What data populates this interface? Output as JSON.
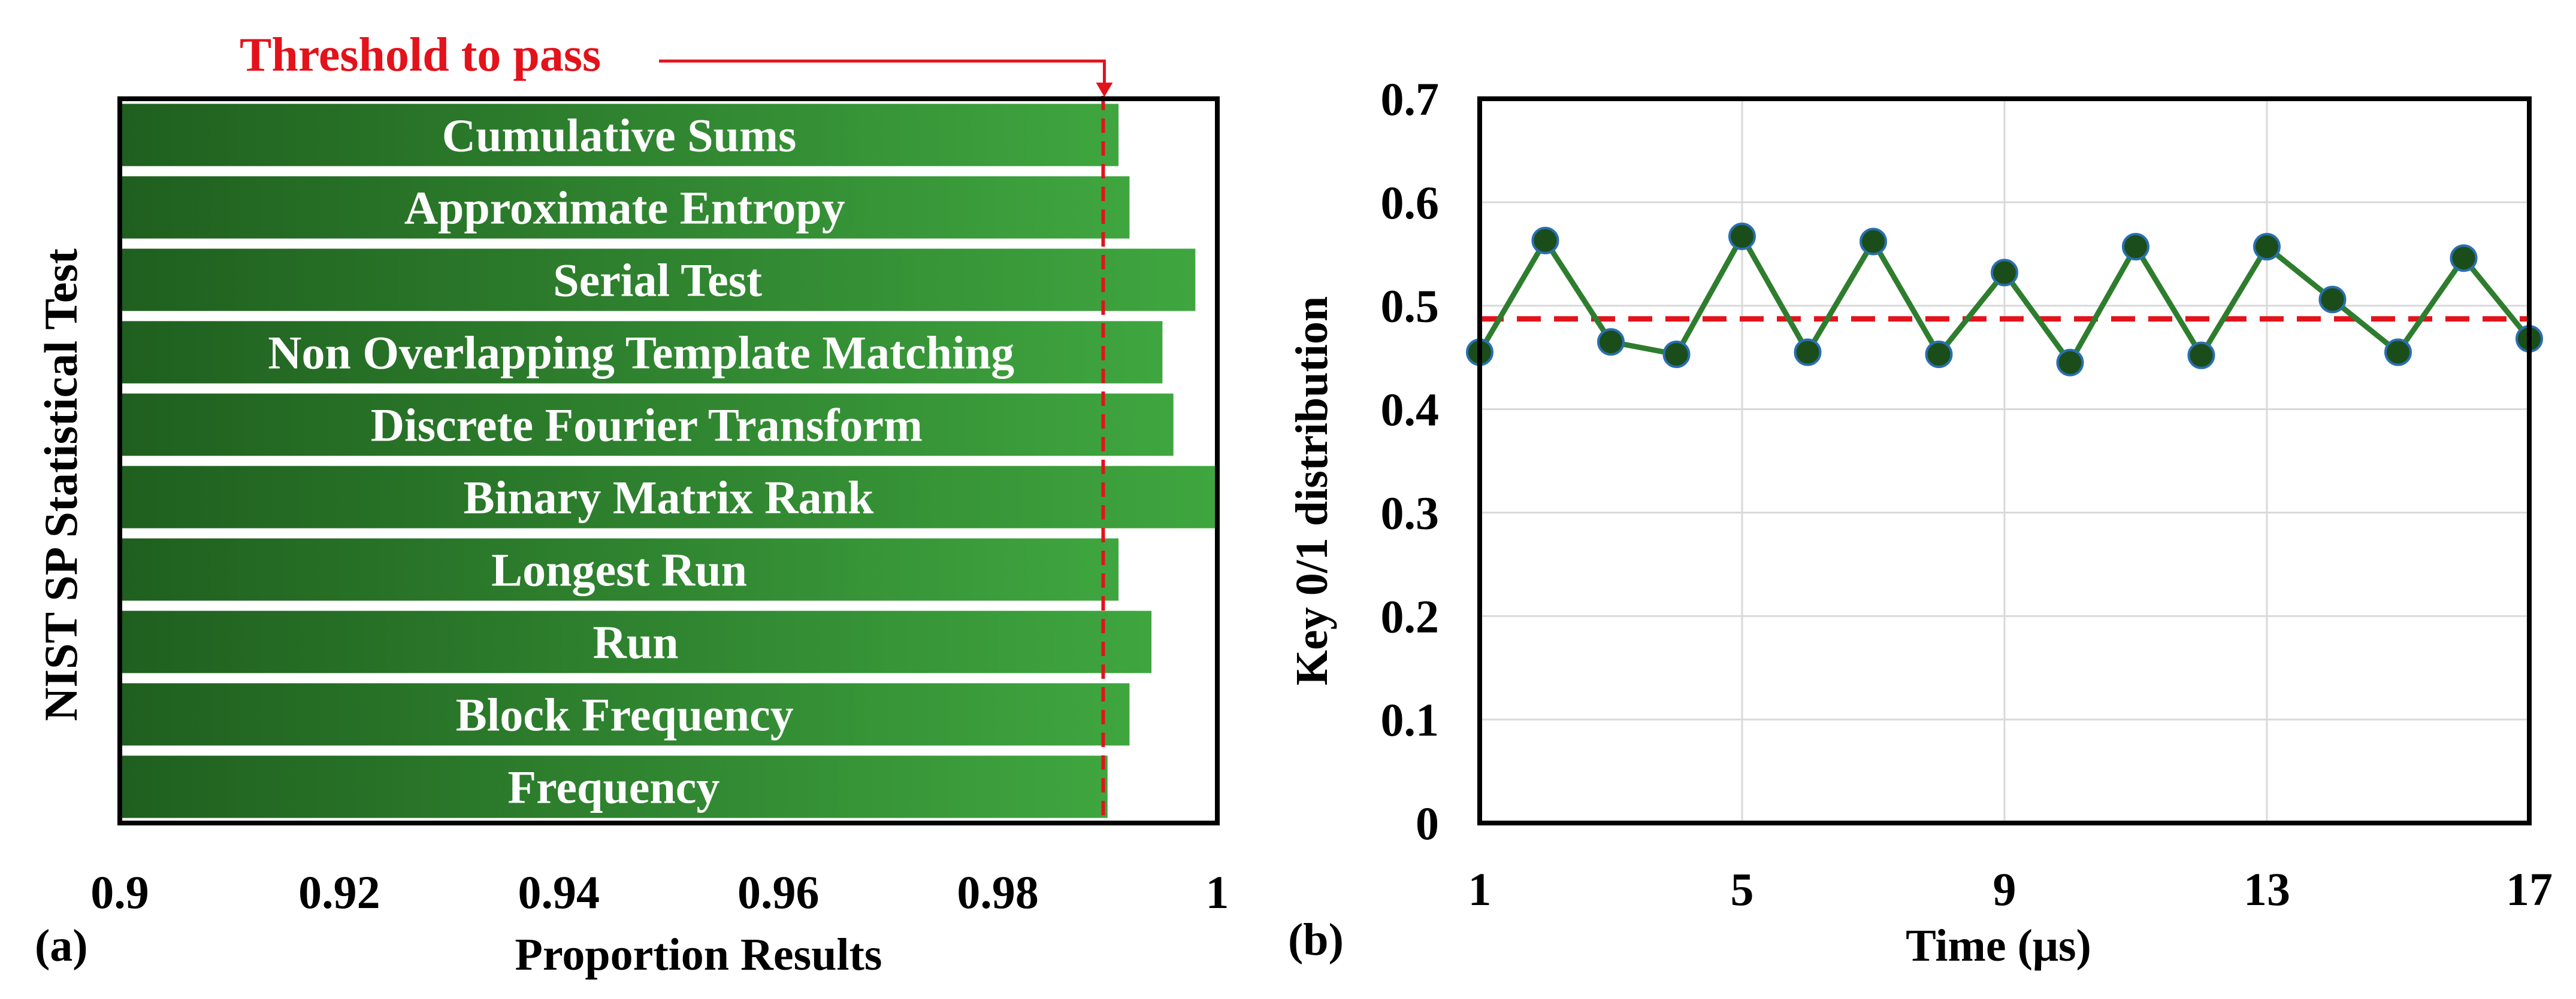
{
  "colors": {
    "bar_dark": "#1f5f1f",
    "bar_light": "#3fa63f",
    "threshold": "#e3121b",
    "line": "#2e7d2e",
    "marker": "#1b4d1b",
    "marker_edge": "#2a6fb0",
    "grid": "#d9d9d9",
    "frame": "#000000",
    "text": "#000000",
    "bar_text": "#ffffff"
  },
  "chart_data": [
    {
      "type": "bar",
      "orientation": "horizontal",
      "panel_label": "(a)",
      "ylabel": "NIST SP Statistical Test",
      "xlabel": "Proportion Results",
      "xlim": [
        0.9,
        1.0
      ],
      "xticks": [
        "0.9",
        "0.92",
        "0.94",
        "0.96",
        "0.98",
        "1"
      ],
      "tick_values": [
        0.9,
        0.92,
        0.94,
        0.96,
        0.98,
        1.0
      ],
      "categories": [
        "Cumulative Sums",
        "Approximate Entropy",
        "Serial Test",
        "Non Overlapping Template Matching",
        "Discrete Fourier Transform",
        "Binary Matrix Rank",
        "Longest Run",
        "Run",
        "Block Frequency",
        "Frequency"
      ],
      "values": [
        0.991,
        0.992,
        0.998,
        0.995,
        0.996,
        1.0,
        0.991,
        0.994,
        0.992,
        0.99
      ],
      "threshold": 0.9896,
      "threshold_label": "Threshold to pass"
    },
    {
      "type": "line",
      "panel_label": "(b)",
      "xlabel": "Time (μs)",
      "ylabel": "Key 0/1 distribution",
      "xlim": [
        1,
        17
      ],
      "ylim": [
        0,
        0.7
      ],
      "xticks": [
        "1",
        "5",
        "9",
        "13",
        "17"
      ],
      "xtick_values": [
        1,
        5,
        9,
        13,
        17
      ],
      "yticks": [
        "0",
        "0.1",
        "0.2",
        "0.3",
        "0.4",
        "0.5",
        "0.6",
        "0.7"
      ],
      "ytick_values": [
        0,
        0.1,
        0.2,
        0.3,
        0.4,
        0.5,
        0.6,
        0.7
      ],
      "x": [
        1,
        2,
        3,
        4,
        5,
        6,
        7,
        8,
        9,
        10,
        11,
        12,
        13,
        14,
        15,
        16,
        17
      ],
      "values": [
        0.455,
        0.563,
        0.465,
        0.453,
        0.567,
        0.455,
        0.562,
        0.453,
        0.532,
        0.445,
        0.557,
        0.452,
        0.557,
        0.506,
        0.455,
        0.546,
        0.468
      ],
      "reference_line": 0.5,
      "grid": true
    }
  ]
}
